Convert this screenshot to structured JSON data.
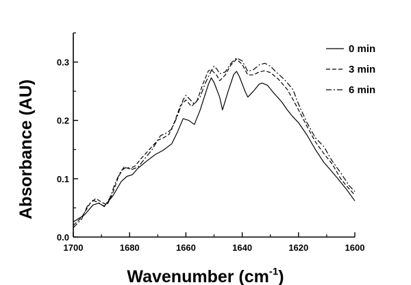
{
  "chart_data": {
    "type": "line",
    "xlabel": "Wavenumber (cm",
    "xlabel_sup": "-1",
    "xlabel_close": ")",
    "ylabel": "Absorbance (AU)",
    "xlim": [
      1700,
      1600
    ],
    "ylim": [
      0.0,
      0.35
    ],
    "x_ticks": [
      1700,
      1680,
      1660,
      1640,
      1620,
      1600
    ],
    "x_tick_labels": [
      "1700",
      "1680",
      "1660",
      "1640",
      "1620",
      "1600"
    ],
    "y_ticks": [
      0.0,
      0.1,
      0.2,
      0.3
    ],
    "y_tick_labels": [
      "0.0",
      "0.1",
      "0.2",
      "0.3"
    ],
    "grid": false,
    "legend_position": "top-right",
    "series": [
      {
        "name": "0 min",
        "style": "solid",
        "points": [
          [
            1700,
            0.026
          ],
          [
            1696,
            0.038
          ],
          [
            1693,
            0.055
          ],
          [
            1691,
            0.058
          ],
          [
            1689,
            0.053
          ],
          [
            1686,
            0.07
          ],
          [
            1683,
            0.095
          ],
          [
            1681,
            0.104
          ],
          [
            1679,
            0.107
          ],
          [
            1677,
            0.118
          ],
          [
            1674,
            0.13
          ],
          [
            1671,
            0.141
          ],
          [
            1668,
            0.149
          ],
          [
            1665,
            0.16
          ],
          [
            1663,
            0.18
          ],
          [
            1661,
            0.203
          ],
          [
            1659,
            0.2
          ],
          [
            1657,
            0.193
          ],
          [
            1655,
            0.217
          ],
          [
            1652,
            0.262
          ],
          [
            1651,
            0.273
          ],
          [
            1650,
            0.265
          ],
          [
            1648,
            0.24
          ],
          [
            1647,
            0.218
          ],
          [
            1645,
            0.25
          ],
          [
            1643,
            0.279
          ],
          [
            1642,
            0.284
          ],
          [
            1641,
            0.275
          ],
          [
            1639,
            0.25
          ],
          [
            1638,
            0.24
          ],
          [
            1636,
            0.25
          ],
          [
            1634,
            0.262
          ],
          [
            1633,
            0.264
          ],
          [
            1631,
            0.26
          ],
          [
            1629,
            0.248
          ],
          [
            1626,
            0.232
          ],
          [
            1624,
            0.218
          ],
          [
            1622,
            0.206
          ],
          [
            1620,
            0.196
          ],
          [
            1617,
            0.175
          ],
          [
            1614,
            0.15
          ],
          [
            1611,
            0.128
          ],
          [
            1609,
            0.117
          ],
          [
            1606,
            0.1
          ],
          [
            1603,
            0.082
          ],
          [
            1600,
            0.062
          ]
        ]
      },
      {
        "name": "3 min",
        "style": "dashed",
        "points": [
          [
            1700,
            0.02
          ],
          [
            1697,
            0.034
          ],
          [
            1694,
            0.058
          ],
          [
            1692,
            0.066
          ],
          [
            1690,
            0.06
          ],
          [
            1688,
            0.055
          ],
          [
            1686,
            0.075
          ],
          [
            1684,
            0.103
          ],
          [
            1682,
            0.12
          ],
          [
            1680,
            0.117
          ],
          [
            1678,
            0.122
          ],
          [
            1676,
            0.134
          ],
          [
            1673,
            0.15
          ],
          [
            1670,
            0.166
          ],
          [
            1668,
            0.17
          ],
          [
            1666,
            0.176
          ],
          [
            1664,
            0.198
          ],
          [
            1662,
            0.225
          ],
          [
            1660,
            0.235
          ],
          [
            1658,
            0.224
          ],
          [
            1656,
            0.234
          ],
          [
            1654,
            0.262
          ],
          [
            1652,
            0.285
          ],
          [
            1651,
            0.287
          ],
          [
            1649,
            0.277
          ],
          [
            1648,
            0.268
          ],
          [
            1646,
            0.278
          ],
          [
            1644,
            0.295
          ],
          [
            1642,
            0.305
          ],
          [
            1640,
            0.296
          ],
          [
            1638,
            0.278
          ],
          [
            1636,
            0.278
          ],
          [
            1634,
            0.283
          ],
          [
            1632,
            0.285
          ],
          [
            1630,
            0.282
          ],
          [
            1627,
            0.27
          ],
          [
            1624,
            0.253
          ],
          [
            1622,
            0.236
          ],
          [
            1620,
            0.218
          ],
          [
            1617,
            0.19
          ],
          [
            1614,
            0.163
          ],
          [
            1611,
            0.143
          ],
          [
            1608,
            0.125
          ],
          [
            1605,
            0.1
          ],
          [
            1603,
            0.088
          ],
          [
            1600,
            0.072
          ]
        ]
      },
      {
        "name": "6 min",
        "style": "dash-dot",
        "points": [
          [
            1700,
            0.016
          ],
          [
            1697,
            0.031
          ],
          [
            1695,
            0.053
          ],
          [
            1693,
            0.063
          ],
          [
            1691,
            0.059
          ],
          [
            1689,
            0.052
          ],
          [
            1687,
            0.067
          ],
          [
            1685,
            0.094
          ],
          [
            1683,
            0.114
          ],
          [
            1681,
            0.12
          ],
          [
            1679,
            0.116
          ],
          [
            1677,
            0.12
          ],
          [
            1675,
            0.132
          ],
          [
            1672,
            0.15
          ],
          [
            1669,
            0.174
          ],
          [
            1667,
            0.178
          ],
          [
            1665,
            0.185
          ],
          [
            1663,
            0.208
          ],
          [
            1661,
            0.235
          ],
          [
            1660,
            0.243
          ],
          [
            1658,
            0.233
          ],
          [
            1657,
            0.228
          ],
          [
            1655,
            0.24
          ],
          [
            1653,
            0.265
          ],
          [
            1651,
            0.285
          ],
          [
            1650,
            0.293
          ],
          [
            1649,
            0.288
          ],
          [
            1648,
            0.28
          ],
          [
            1646,
            0.283
          ],
          [
            1644,
            0.298
          ],
          [
            1642,
            0.307
          ],
          [
            1640,
            0.302
          ],
          [
            1638,
            0.284
          ],
          [
            1636,
            0.287
          ],
          [
            1634,
            0.295
          ],
          [
            1632,
            0.298
          ],
          [
            1630,
            0.293
          ],
          [
            1628,
            0.283
          ],
          [
            1625,
            0.27
          ],
          [
            1622,
            0.253
          ],
          [
            1620,
            0.228
          ],
          [
            1617,
            0.196
          ],
          [
            1614,
            0.17
          ],
          [
            1611,
            0.155
          ],
          [
            1608,
            0.13
          ],
          [
            1605,
            0.11
          ],
          [
            1602,
            0.088
          ],
          [
            1600,
            0.078
          ]
        ]
      }
    ]
  }
}
